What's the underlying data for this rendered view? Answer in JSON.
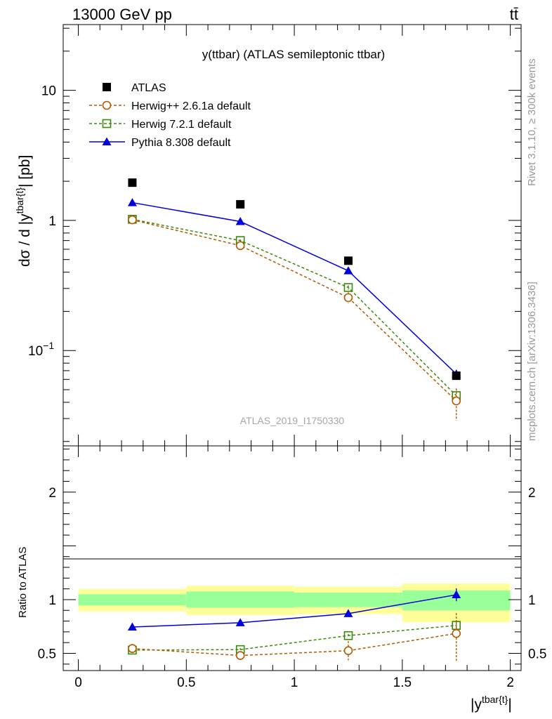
{
  "header": {
    "energy_label": "13000 GeV pp",
    "process_label": "tt̄"
  },
  "side_labels": {
    "rivet": "Rivet 3.1.10, ≥ 300k events",
    "source": "mcplots.cern.ch [arXiv:1306.3436]"
  },
  "chart_data": [
    {
      "type": "line",
      "scale": "log",
      "title": "y(ttbar) (ATLAS semileptonic ttbar)",
      "watermark": "ATLAS_2019_I1750330",
      "ylabel": "dσ / d |y^{tbar{t}}| [pb]",
      "xlim": [
        -0.07,
        2.05
      ],
      "ylim": [
        0.0185,
        32
      ],
      "yticks": [
        {
          "value": 10,
          "label": "10"
        },
        {
          "value": 1,
          "label": "1"
        },
        {
          "value": 0.1,
          "label": "10",
          "exp": "−1"
        }
      ],
      "x": [
        0.25,
        0.75,
        1.25,
        1.75
      ],
      "series": [
        {
          "name": "ATLAS",
          "role": "data",
          "color": "#000000",
          "marker": "square-filled",
          "values": [
            1.95,
            1.33,
            0.49,
            0.064
          ]
        },
        {
          "name": "Herwig++ 2.6.1a default",
          "color": "#b35900",
          "marker": "circle-open",
          "dash": true,
          "values": [
            1.01,
            0.64,
            0.255,
            0.041
          ],
          "err_low": [
            0.03,
            0.02,
            0.025,
            0.012
          ],
          "err_high": [
            0.03,
            0.02,
            0.025,
            0.01
          ]
        },
        {
          "name": "Herwig 7.2.1 default",
          "color": "#3a8a0a",
          "marker": "square-open",
          "dash": true,
          "values": [
            1.02,
            0.7,
            0.305,
            0.045
          ],
          "err_low": [
            0.02,
            0.015,
            0.012,
            0.006
          ],
          "err_high": [
            0.02,
            0.015,
            0.012,
            0.006
          ]
        },
        {
          "name": "Pythia 8.308 default",
          "color": "#0000dd",
          "marker": "triangle-filled",
          "dash": false,
          "values": [
            1.37,
            0.98,
            0.41,
            0.066
          ],
          "err_low": [
            0.01,
            0.01,
            0.008,
            0.005
          ],
          "err_high": [
            0.01,
            0.01,
            0.008,
            0.005
          ]
        }
      ]
    },
    {
      "type": "line",
      "scale": "linear",
      "ylabel": "Ratio to ATLAS",
      "xlabel": "|y^{tbar{t}}|",
      "xlim": [
        -0.07,
        2.05
      ],
      "ylim": [
        0.34,
        2.43
      ],
      "xticks": [
        {
          "value": 0,
          "label": "0"
        },
        {
          "value": 0.5,
          "label": "0.5"
        },
        {
          "value": 1,
          "label": "1"
        },
        {
          "value": 1.5,
          "label": "1.5"
        },
        {
          "value": 2,
          "label": "2"
        }
      ],
      "yticks": [
        {
          "value": 2,
          "label": "2"
        },
        {
          "value": 1,
          "label": "1"
        },
        {
          "value": 0.5,
          "label": "0.5"
        }
      ],
      "bands": [
        {
          "x": [
            0,
            0.5
          ],
          "yellow": [
            0.89,
            1.1
          ],
          "green": [
            0.945,
            1.05
          ]
        },
        {
          "x": [
            0.5,
            1
          ],
          "yellow": [
            0.855,
            1.13
          ],
          "green": [
            0.925,
            1.075
          ]
        },
        {
          "x": [
            1,
            1.5
          ],
          "yellow": [
            0.865,
            1.12
          ],
          "green": [
            0.93,
            1.065
          ]
        },
        {
          "x": [
            1.5,
            2
          ],
          "yellow": [
            0.79,
            1.15
          ],
          "green": [
            0.9,
            1.085
          ]
        }
      ],
      "band_colors": {
        "yellow": "#ffff99",
        "green": "#99ff99"
      },
      "x": [
        0.25,
        0.75,
        1.25,
        1.75
      ],
      "series": [
        {
          "name": "Herwig++ 2.6.1a default",
          "color": "#b35900",
          "marker": "circle-open",
          "dash": true,
          "values": [
            0.545,
            0.48,
            0.525,
            0.685
          ],
          "err_low": [
            0.04,
            0.04,
            0.09,
            0.26
          ],
          "err_high": [
            0.04,
            0.04,
            0.09,
            0.19
          ]
        },
        {
          "name": "Herwig 7.2.1 default",
          "color": "#3a8a0a",
          "marker": "square-open",
          "dash": true,
          "values": [
            0.53,
            0.535,
            0.665,
            0.76
          ],
          "err_low": [
            0.02,
            0.015,
            0.015,
            0.03
          ],
          "err_high": [
            0.02,
            0.015,
            0.015,
            0.03
          ]
        },
        {
          "name": "Pythia 8.308 default",
          "color": "#0000dd",
          "marker": "triangle-filled",
          "dash": false,
          "values": [
            0.745,
            0.785,
            0.87,
            1.045
          ],
          "err_low": [
            0.005,
            0.008,
            0.02,
            0.06
          ],
          "err_high": [
            0.005,
            0.008,
            0.02,
            0.06
          ]
        }
      ]
    }
  ]
}
